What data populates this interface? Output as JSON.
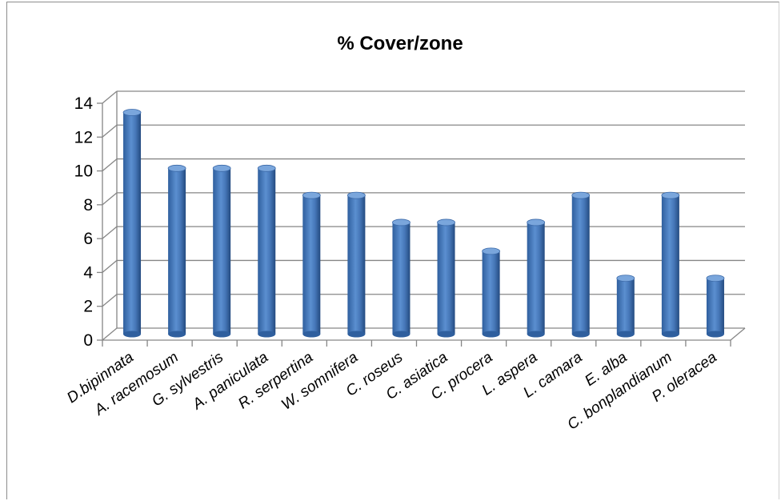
{
  "chart_data": {
    "type": "bar",
    "title": "% Cover/zone",
    "xlabel": "",
    "ylabel": "",
    "categories": [
      "D.bipinnata",
      "A. racemosum",
      "G. sylvestris",
      "A. paniculata",
      "R. serpertina",
      "W. somnifera",
      "C. roseus",
      "C. asiatica",
      "C. procera",
      "L. aspera",
      "L. camara",
      "E. alba",
      "C. bonplandianum",
      "P. oleracea"
    ],
    "values": [
      13.1,
      9.8,
      9.8,
      9.8,
      8.2,
      8.2,
      6.6,
      6.6,
      4.9,
      6.6,
      8.2,
      3.3,
      8.2,
      3.3
    ],
    "ylim": [
      0,
      14
    ],
    "yticks": [
      0,
      2,
      4,
      6,
      8,
      10,
      12,
      14
    ],
    "grid": true,
    "legend": "none",
    "bar_color": "#4a7ebb"
  }
}
